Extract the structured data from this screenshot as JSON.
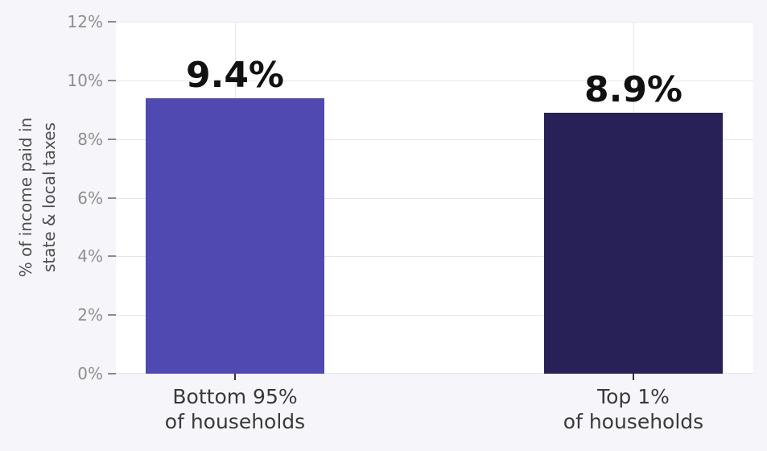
{
  "chart_data": {
    "type": "bar",
    "title": "",
    "categories": [
      "Bottom 95%\nof households",
      "Top 1%\nof households"
    ],
    "values": [
      9.4,
      8.9
    ],
    "value_labels": [
      "9.4%",
      "8.9%"
    ],
    "bar_colors": [
      "#5149b2",
      "#272158"
    ],
    "xlabel": "",
    "ylabel": "% of income paid in\nstate & local taxes",
    "ylim": [
      0,
      12
    ],
    "yticks": [
      0,
      2,
      4,
      6,
      8,
      10,
      12
    ],
    "ytick_labels": [
      "0%",
      "2%",
      "4%",
      "6%",
      "8%",
      "10%",
      "12%"
    ],
    "grid": true,
    "legend": "none"
  },
  "colors": {
    "figure_background": "#f6f6fa",
    "panel_background": "#ffffff",
    "gridline": "#e5e5ef",
    "ytick_text": "#8e8e8e",
    "ytick_mark": "#8a8a8a",
    "xtick_text": "#3a3a3a",
    "xtick_mark": "#333333",
    "axis_title_text": "#4f4f4f",
    "value_label_text": "#111111"
  }
}
